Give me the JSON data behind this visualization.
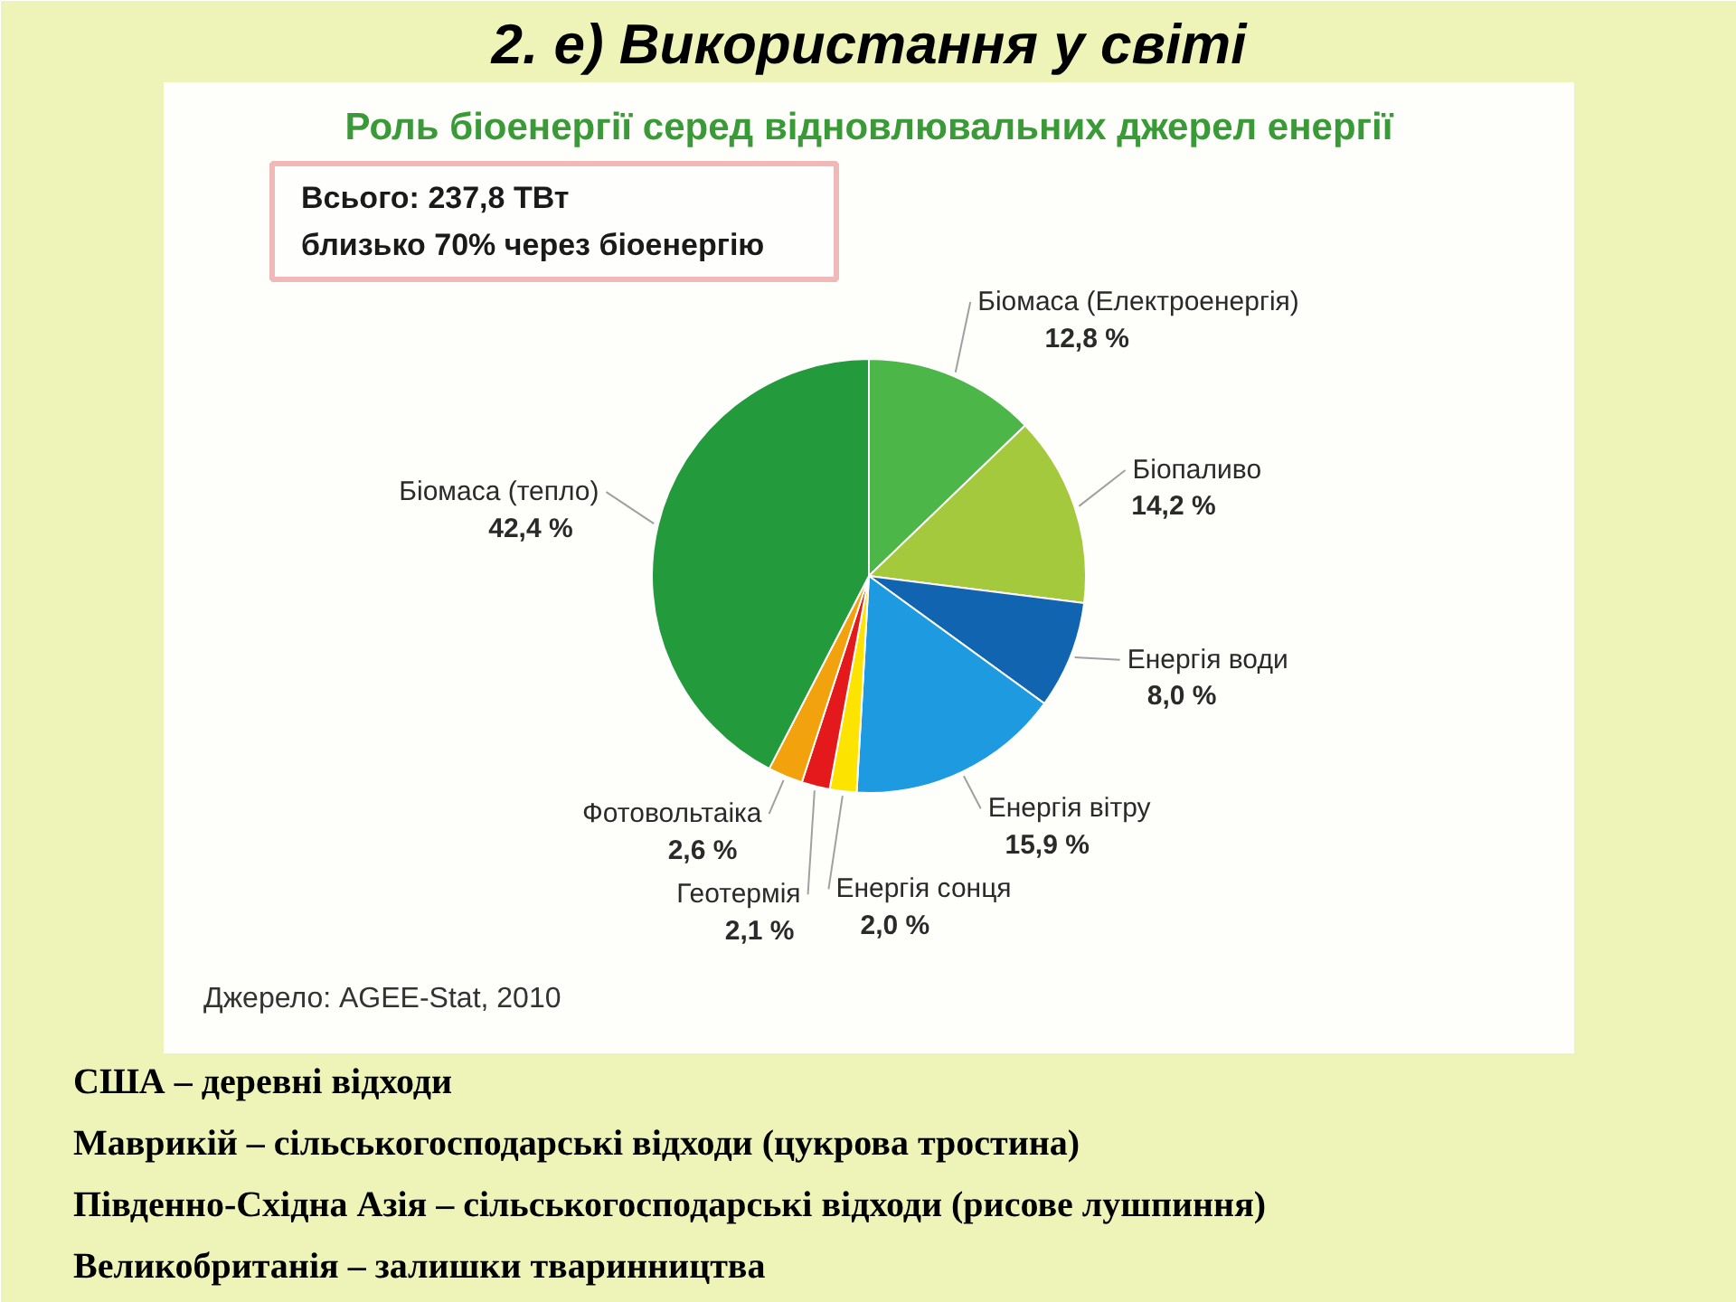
{
  "chart_data": {
    "type": "pie",
    "title": "2. е) Використання у світі",
    "subtitle": "Роль біоенергії серед відновлювальних джерел енергії",
    "categories": [
      "Біомаса (Електроенергія)",
      "Біопаливо",
      "Енергія води",
      "Енергія вітру",
      "Енергія сонця",
      "Геотермія",
      "Фотовольтаіка",
      "Біомаса (тепло)"
    ],
    "values": [
      12.8,
      14.2,
      8.0,
      15.9,
      2.0,
      2.1,
      2.6,
      42.4
    ],
    "value_labels": [
      "12,8 %",
      "14,2 %",
      "8,0 %",
      "15,9 %",
      "2,0 %",
      "2,1 %",
      "2,6 %",
      "42,4 %"
    ],
    "colors": [
      "#4db648",
      "#a5c93c",
      "#1064b0",
      "#1e9be0",
      "#fde400",
      "#e3191b",
      "#f2a20c",
      "#239b3c"
    ],
    "annotations": [
      "Всього: 237,8 ТВт",
      "близько 70% через біоенергію",
      "Джерело: AGEE-Stat, 2010",
      "США – деревні відходи",
      "Маврикій – сільськогосподарські відходи (цукрова тростина)",
      "Південно-Східна Азія – сільськогосподарські відходи (рисове лушпиння)",
      "Великобританія – залишки тваринництва"
    ]
  }
}
